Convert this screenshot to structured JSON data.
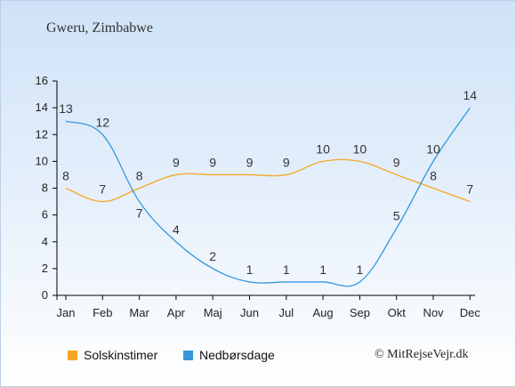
{
  "location": "Gweru, Zimbabwe",
  "credit": "© MitRejseVejr.dk",
  "colors": {
    "sun": "#f5a623",
    "rain": "#3498db",
    "axis": "#000000",
    "label": "#333333"
  },
  "chart_data": {
    "type": "line",
    "categories": [
      "Jan",
      "Feb",
      "Mar",
      "Apr",
      "Maj",
      "Jun",
      "Jul",
      "Aug",
      "Sep",
      "Okt",
      "Nov",
      "Dec"
    ],
    "yticks": [
      0,
      2,
      4,
      6,
      8,
      10,
      12,
      14,
      16
    ],
    "ylim": [
      0,
      16
    ],
    "grid": false,
    "legend_position": "bottom",
    "series": [
      {
        "name": "Solskinstimer",
        "color": "#f5a623",
        "values": [
          8,
          7,
          8,
          9,
          9,
          9,
          9,
          10,
          10,
          9,
          8,
          7
        ],
        "labels": [
          "8",
          "7",
          "8",
          "9",
          "9",
          "9",
          "9",
          "10",
          "10",
          "9",
          "8",
          "7"
        ]
      },
      {
        "name": "Nedbørsdage",
        "color": "#3498db",
        "values": [
          13,
          12,
          7,
          4,
          2,
          1,
          1,
          1,
          1,
          5,
          10,
          14
        ],
        "labels": [
          "13",
          "12",
          "7",
          "4",
          "2",
          "1",
          "1",
          "1",
          "1",
          "5",
          "10",
          "14"
        ]
      }
    ]
  }
}
